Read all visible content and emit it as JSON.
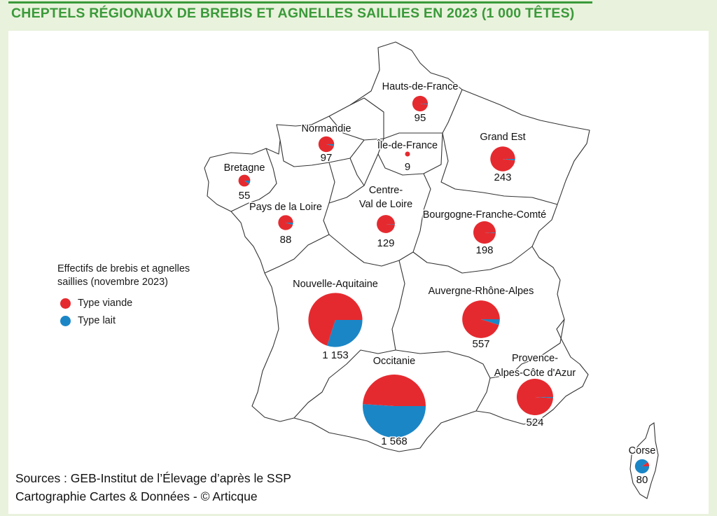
{
  "title": "CHEPTELS RÉGIONAUX DE BREBIS ET AGNELLES SAILLIES EN 2023 (1 000 TÊTES)",
  "colors": {
    "viande": "#e52a2f",
    "lait": "#1b86c6",
    "title": "#3a9a3a",
    "background": "#e9f2dc"
  },
  "legend": {
    "title_line1": "Effectifs de brebis et agnelles",
    "title_line2": "saillies (novembre 2023)",
    "items": [
      {
        "label": "Type viande",
        "color": "#e52a2f"
      },
      {
        "label": "Type lait",
        "color": "#1b86c6"
      }
    ]
  },
  "sources": {
    "line1": "Sources : GEB-Institut de l’Élevage d’après le SSP",
    "line2": "Cartographie Cartes & Données - © Articque"
  },
  "regions": [
    {
      "id": "hauts-de-france",
      "name": "Hauts-de-France",
      "value_label": "95",
      "total": 95,
      "lait_share": 0.02
    },
    {
      "id": "normandie",
      "name": "Normandie",
      "value_label": "97",
      "total": 97,
      "lait_share": 0.04
    },
    {
      "id": "ile-de-france",
      "name": "Île-de-France",
      "value_label": "9",
      "total": 9,
      "lait_share": 0.0
    },
    {
      "id": "grand-est",
      "name": "Grand Est",
      "value_label": "243",
      "total": 243,
      "lait_share": 0.02
    },
    {
      "id": "bretagne",
      "name": "Bretagne",
      "value_label": "55",
      "total": 55,
      "lait_share": 0.1
    },
    {
      "id": "pays-de-la-loire",
      "name": "Pays de la Loire",
      "value_label": "88",
      "total": 88,
      "lait_share": 0.05
    },
    {
      "id": "centre-val-de-loire",
      "name_line1": "Centre-",
      "name_line2": "Val de Loire",
      "value_label": "129",
      "total": 129,
      "lait_share": 0.01
    },
    {
      "id": "bourgogne-franche-comte",
      "name": "Bourgogne-Franche-Comté",
      "value_label": "198",
      "total": 198,
      "lait_share": 0.01
    },
    {
      "id": "nouvelle-aquitaine",
      "name": "Nouvelle-Aquitaine",
      "value_label": "1 153",
      "total": 1153,
      "lait_share": 0.3
    },
    {
      "id": "auvergne-rhone-alpes",
      "name": "Auvergne-Rhône-Alpes",
      "value_label": "557",
      "total": 557,
      "lait_share": 0.05
    },
    {
      "id": "occitanie",
      "name": "Occitanie",
      "value_label": "1 568",
      "total": 1568,
      "lait_share": 0.51
    },
    {
      "id": "provence-alpes-cote-dazur",
      "name_line1": "Provence-",
      "name_line2": "Alpes-Côte d'Azur",
      "value_label": "524",
      "total": 524,
      "lait_share": 0.01
    },
    {
      "id": "corse",
      "name": "Corse",
      "value_label": "80",
      "total": 80,
      "lait_share": 0.9
    }
  ]
}
